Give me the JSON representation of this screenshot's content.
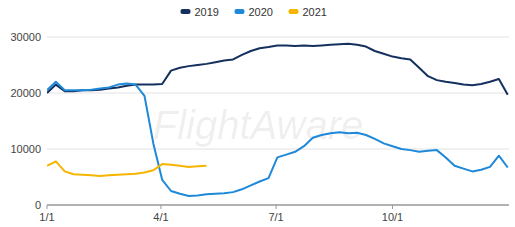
{
  "chart_data": {
    "type": "line",
    "annotations": [
      "FlightAware"
    ],
    "x": [
      0,
      7,
      14,
      21,
      28,
      35,
      42,
      49,
      56,
      63,
      70,
      77,
      84,
      91,
      98,
      105,
      112,
      119,
      126,
      133,
      140,
      147,
      154,
      161,
      168,
      175,
      182,
      189,
      196,
      203,
      210,
      217,
      224,
      231,
      238,
      245,
      252,
      259,
      266,
      273,
      280,
      287,
      294,
      301,
      308,
      315,
      322,
      329,
      336,
      343,
      350,
      357,
      364
    ],
    "xlim": [
      0,
      365
    ],
    "xticks": [
      {
        "value": 0,
        "label": "1/1"
      },
      {
        "value": 90,
        "label": "4/1"
      },
      {
        "value": 181,
        "label": "7/1"
      },
      {
        "value": 273,
        "label": "10/1"
      }
    ],
    "ylim": [
      0,
      30000
    ],
    "yticks": [
      0,
      10000,
      20000,
      30000
    ],
    "grid": true,
    "legend": "top",
    "series": [
      {
        "name": "2019",
        "color": "#14305f",
        "values": [
          20000,
          21500,
          20300,
          20300,
          20500,
          20500,
          20600,
          20800,
          21000,
          21300,
          21500,
          21500,
          21500,
          21600,
          24000,
          24500,
          24800,
          25000,
          25200,
          25500,
          25800,
          26000,
          26800,
          27500,
          28000,
          28200,
          28500,
          28500,
          28400,
          28500,
          28400,
          28500,
          28600,
          28700,
          28800,
          28600,
          28300,
          27500,
          27000,
          26500,
          26200,
          26000,
          24500,
          23000,
          22300,
          22000,
          21800,
          21500,
          21400,
          21600,
          22000,
          22500,
          19700
        ]
      },
      {
        "name": "2020",
        "color": "#1e88d9",
        "values": [
          20500,
          22000,
          20500,
          20500,
          20500,
          20600,
          20800,
          21000,
          21500,
          21700,
          21500,
          19500,
          11000,
          4500,
          2500,
          2000,
          1600,
          1700,
          1900,
          2000,
          2100,
          2300,
          2800,
          3500,
          4200,
          4800,
          8500,
          9000,
          9500,
          10500,
          12000,
          12500,
          12800,
          13000,
          12800,
          12900,
          12500,
          11800,
          11000,
          10500,
          10000,
          9800,
          9500,
          9700,
          9800,
          8500,
          7000,
          6500,
          6000,
          6300,
          6800,
          8800,
          6700
        ]
      },
      {
        "name": "2021",
        "color": "#f7b500",
        "values": [
          7000,
          7800,
          6000,
          5500,
          5400,
          5300,
          5200,
          5300,
          5400,
          5500,
          5600,
          5800,
          6200,
          7300,
          7200,
          7000,
          6800,
          6900,
          7000,
          null,
          null,
          null,
          null,
          null,
          null,
          null,
          null,
          null,
          null,
          null,
          null,
          null,
          null,
          null,
          null,
          null,
          null,
          null,
          null,
          null,
          null,
          null,
          null,
          null,
          null,
          null,
          null,
          null,
          null,
          null,
          null,
          null,
          null
        ]
      }
    ]
  }
}
